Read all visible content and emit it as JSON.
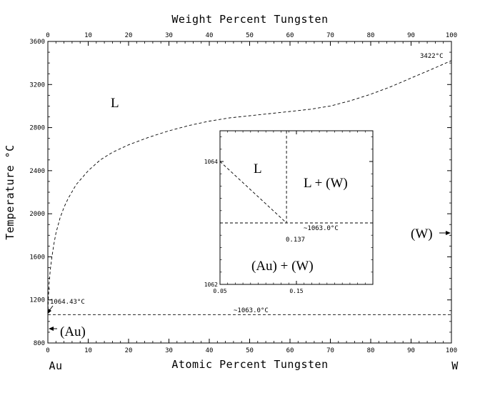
{
  "chart_data": {
    "type": "line",
    "xlabel_top": "Weight Percent Tungsten",
    "xlabel": "Atomic Percent Tungsten",
    "ylabel": "Temperature °C",
    "x_ticks": [
      "0",
      "10",
      "20",
      "30",
      "40",
      "50",
      "60",
      "70",
      "80",
      "90",
      "100"
    ],
    "x_top_ticks": [
      "0",
      "10",
      "20",
      "30",
      "40",
      "50",
      "60",
      "70",
      "80",
      "90",
      "100"
    ],
    "y_ticks": [
      "800",
      "1200",
      "1600",
      "2000",
      "2400",
      "2800",
      "3200",
      "3600"
    ],
    "xlim": [
      0,
      100
    ],
    "ylim": [
      800,
      3600
    ],
    "element_left": "Au",
    "element_right": "W",
    "series": [
      {
        "type": "liquidus",
        "x": [
          0,
          0.1,
          0.3,
          0.6,
          1,
          1.5,
          2,
          3,
          4,
          5,
          7,
          10,
          13,
          16,
          20,
          25,
          30,
          35,
          40,
          45,
          50,
          55,
          60,
          65,
          70,
          75,
          80,
          85,
          90,
          95,
          100
        ],
        "y": [
          1064.43,
          1200,
          1350,
          1480,
          1600,
          1720,
          1820,
          1960,
          2060,
          2140,
          2270,
          2400,
          2500,
          2570,
          2640,
          2710,
          2770,
          2820,
          2860,
          2890,
          2910,
          2930,
          2950,
          2970,
          3000,
          3050,
          3110,
          3180,
          3260,
          3340,
          3422
        ]
      },
      {
        "type": "eutectic",
        "x": [
          0,
          100
        ],
        "y": [
          1063.0,
          1063.0
        ]
      }
    ],
    "labels": {
      "liquid": "L",
      "au_phase": "(Au)",
      "w_phase": "(W)",
      "w_melt": "3422°C",
      "au_melt": "1064.43°C",
      "eutectic_temp": "~1063.0°C"
    },
    "inset": {
      "xlim": [
        0.05,
        0.25
      ],
      "ylim": [
        1062,
        1064.5
      ],
      "x_ticks": [
        "0.05",
        "0.15"
      ],
      "y_ticks": [
        "1062",
        "1064"
      ],
      "liquidus": {
        "x": [
          0.05,
          0.137
        ],
        "y": [
          1064,
          1063.0
        ]
      },
      "eutectic_temp": 1063.0,
      "eutectic_x": 0.137,
      "labels": {
        "liquid": "L",
        "two_phase_top": "L + (W)",
        "two_phase_bottom": "(Au) + (W)",
        "eutectic_temp": "~1063.0°C",
        "eutectic_comp": "0.137"
      }
    }
  }
}
